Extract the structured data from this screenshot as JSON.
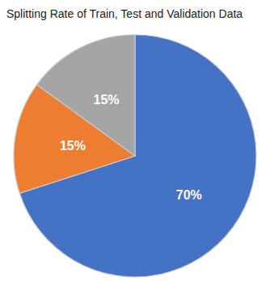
{
  "chart_data": {
    "type": "pie",
    "title": "Splitting Rate of Train, Test and Validation Data",
    "values": [
      70,
      15,
      15
    ],
    "value_labels": [
      "70%",
      "15%",
      "15%"
    ],
    "colors": [
      "#4472C4",
      "#ED7D31",
      "#A5A5A5"
    ],
    "data_labels": true
  }
}
